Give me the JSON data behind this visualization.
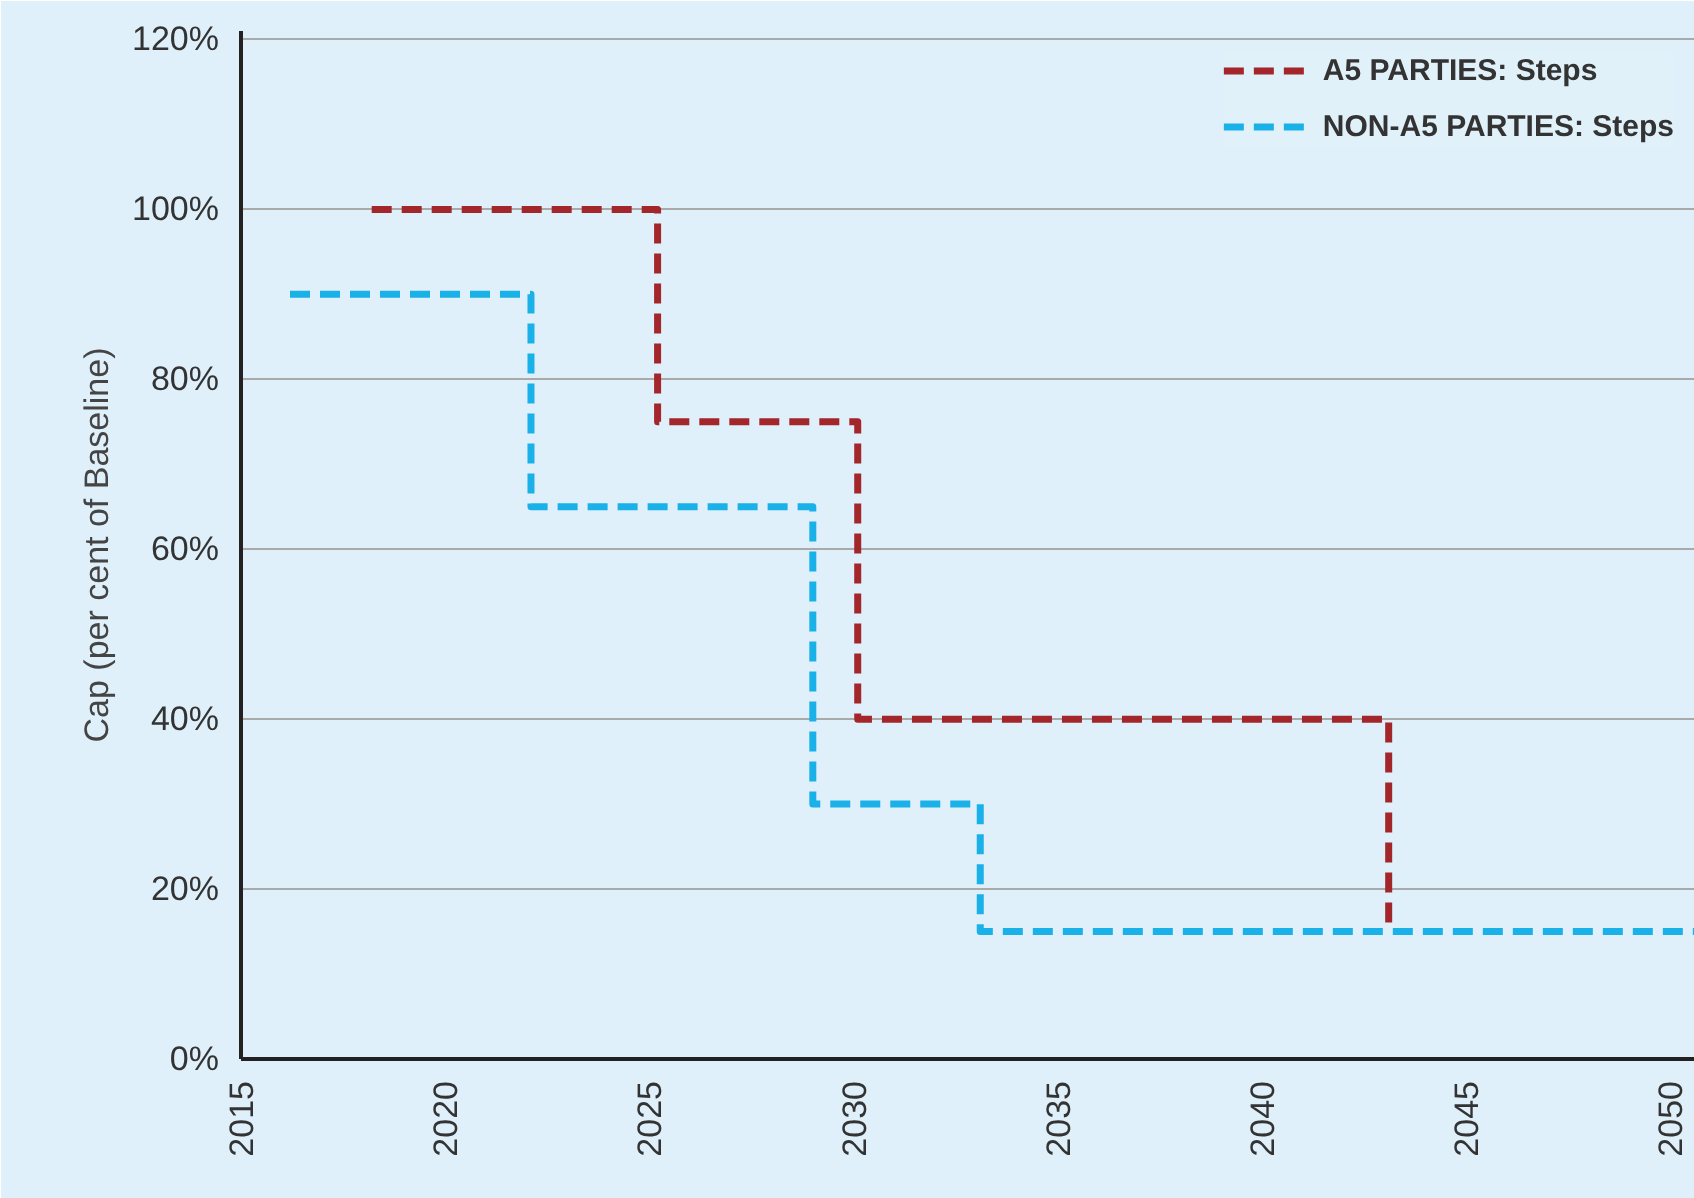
{
  "chart_data": {
    "type": "step",
    "ylabel": "Cap (per cent of Baseline)",
    "xlim": [
      2015,
      2050.6
    ],
    "xticks": [
      2015,
      2020,
      2025,
      2030,
      2035,
      2040,
      2045,
      2050
    ],
    "ylim": [
      0,
      121
    ],
    "yticks": [
      {
        "value": 0,
        "label": "0%"
      },
      {
        "value": 20,
        "label": "20%"
      },
      {
        "value": 40,
        "label": "40%"
      },
      {
        "value": 60,
        "label": "60%"
      },
      {
        "value": 80,
        "label": "80%"
      },
      {
        "value": 100,
        "label": "100%"
      },
      {
        "value": 120,
        "label": "120%"
      }
    ],
    "grid": "y",
    "legend": "top right",
    "line_style": "dashed",
    "series": [
      {
        "name": "A5 PARTIES: Steps",
        "color": "#a3262a",
        "x": [
          2018.2,
          2025.2,
          2030.1,
          2043.1
        ],
        "values": [
          100,
          75,
          40,
          15
        ]
      },
      {
        "name": "NON-A5 PARTIES: Steps",
        "color": "#1ab0e8",
        "x": [
          2016.2,
          2022.1,
          2029.0,
          2033.1,
          2050.6
        ],
        "values": [
          90,
          65,
          30,
          15,
          15
        ]
      }
    ]
  }
}
